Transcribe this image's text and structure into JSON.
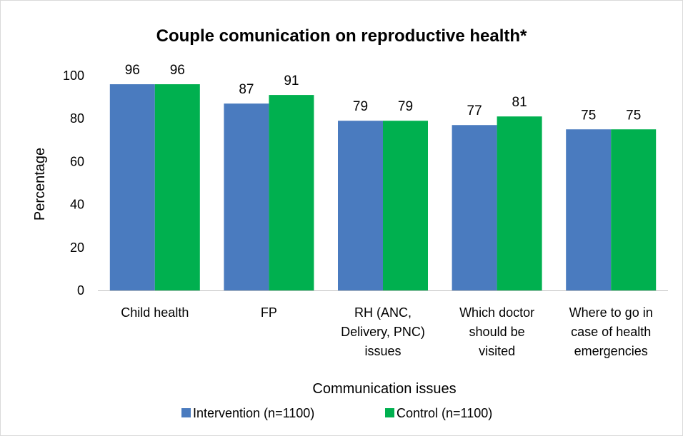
{
  "chart_data": {
    "type": "bar",
    "title": "Couple comunication on reproductive health*",
    "xlabel": "Communication issues",
    "ylabel": "Percentage",
    "ylim": [
      0,
      100
    ],
    "yticks": [
      0,
      20,
      40,
      60,
      80,
      100
    ],
    "grid": false,
    "legend_position": "bottom",
    "categories": [
      [
        "Child health"
      ],
      [
        "FP"
      ],
      [
        "RH (ANC,",
        "Delivery, PNC)",
        "issues"
      ],
      [
        "Which doctor",
        "should be",
        "visited"
      ],
      [
        "Where to go in",
        "case of health",
        "emergencies"
      ]
    ],
    "series": [
      {
        "name": "Intervention (n=1100)",
        "color": "#4a7bbf",
        "values": [
          96,
          87,
          79,
          77,
          75
        ]
      },
      {
        "name": "Control (n=1100)",
        "color": "#00b04f",
        "values": [
          96,
          91,
          79,
          81,
          75
        ]
      }
    ],
    "data_labels": [
      [
        "96",
        "87",
        "79",
        "77",
        "75"
      ],
      [
        "96",
        "91",
        "79",
        "81",
        "75"
      ]
    ]
  }
}
